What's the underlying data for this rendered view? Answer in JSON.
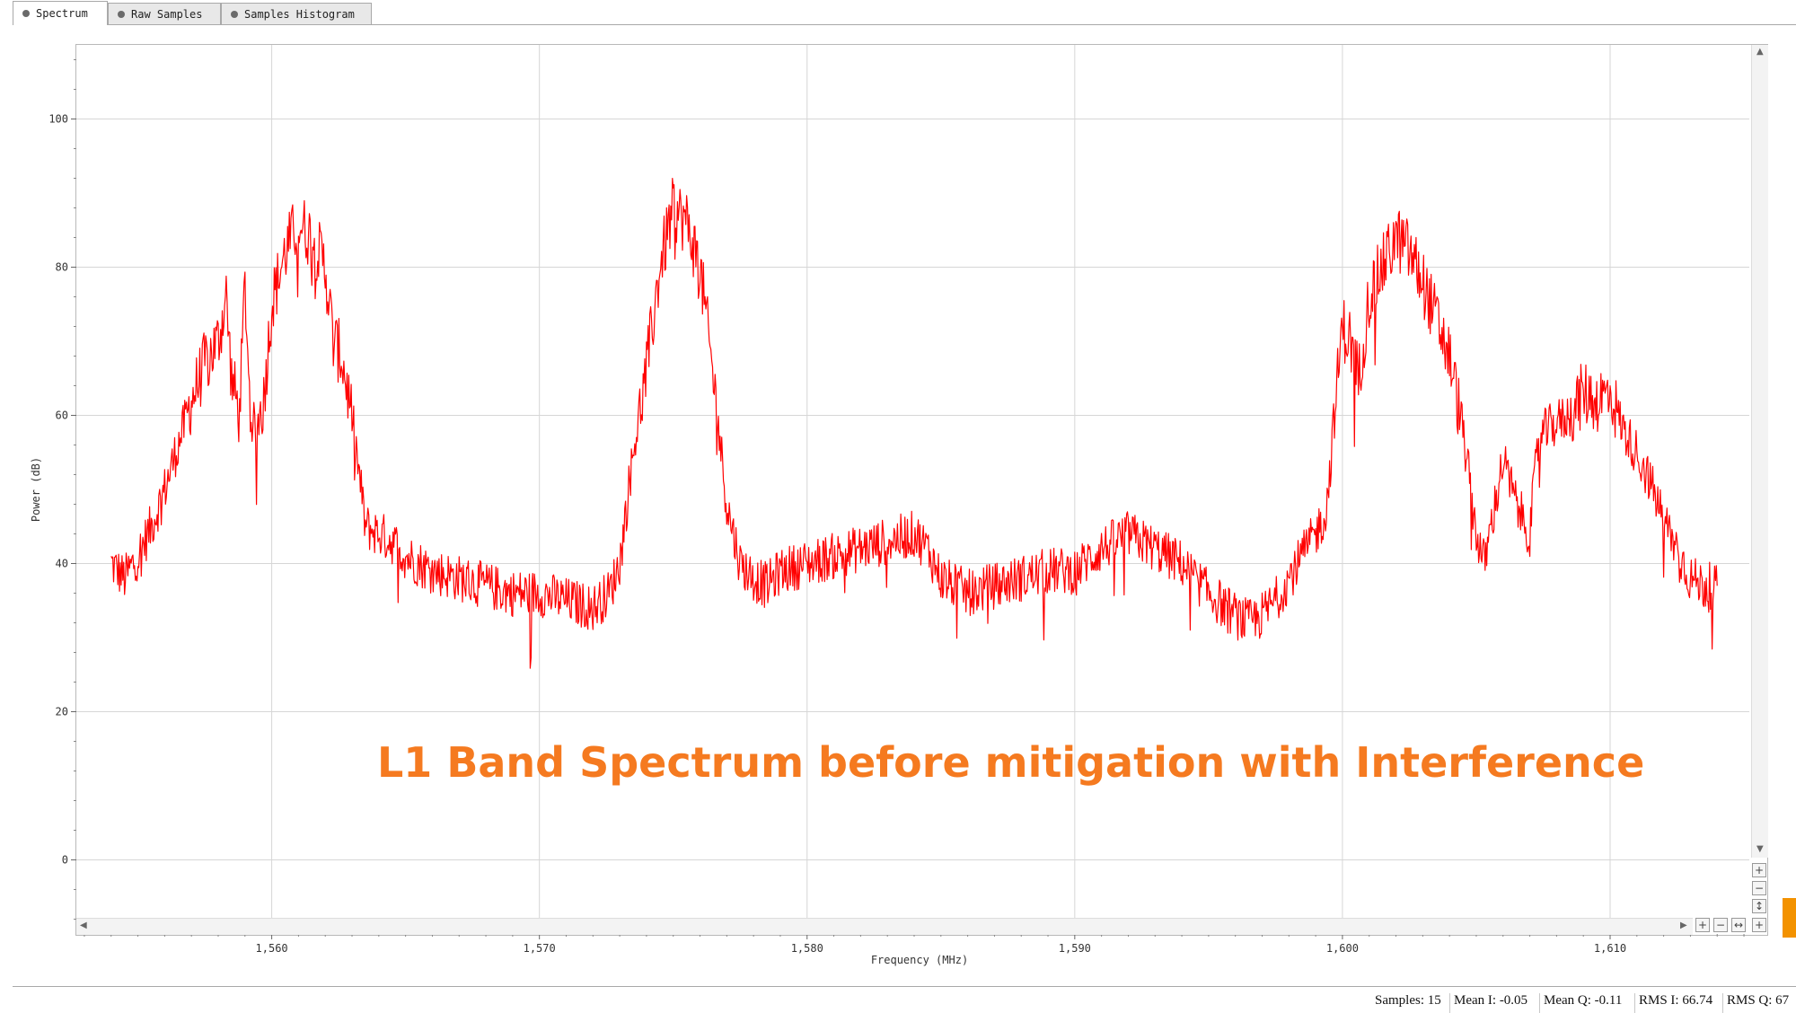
{
  "tabs": [
    {
      "label": "Spectrum",
      "active": true
    },
    {
      "label": "Raw Samples",
      "active": false
    },
    {
      "label": "Samples Histogram",
      "active": false
    }
  ],
  "annotation": "L1 Band Spectrum before mitigation with Interference",
  "status": {
    "samples": "Samples: 15",
    "mean_i": "Mean I: -0.05",
    "mean_q": "Mean Q: -0.11",
    "rms_i": "RMS I: 66.74",
    "rms_q": "RMS Q: 67"
  },
  "zoom_controls": [
    "+",
    "−",
    "+",
    "−",
    "+"
  ],
  "chart_data": {
    "type": "line",
    "xlabel": "Frequency (MHz)",
    "ylabel": "Power (dB)",
    "xlim": [
      1552.7,
      1615.2
    ],
    "ylim": [
      -10,
      110
    ],
    "xticks": [
      1560,
      1570,
      1580,
      1590,
      1600,
      1610
    ],
    "xtick_labels": [
      "1,560",
      "1,570",
      "1,580",
      "1,590",
      "1,600",
      "1,610"
    ],
    "yticks": [
      0,
      20,
      40,
      60,
      80,
      100
    ],
    "ytick_labels": [
      "0",
      "20",
      "40",
      "60",
      "80",
      "100"
    ],
    "grid": true,
    "line_color": "#ff0000",
    "series": [
      {
        "x": [
          1554.0,
          1554.5,
          1555.0,
          1555.5,
          1556.0,
          1556.5,
          1557.0,
          1557.5,
          1558.0,
          1558.3,
          1558.5,
          1558.8,
          1559.0,
          1559.2,
          1559.4,
          1559.7,
          1560.0,
          1560.5,
          1561.0,
          1561.5,
          1562.0,
          1562.3,
          1562.6,
          1563.0,
          1563.5,
          1564.0,
          1564.5,
          1565.0,
          1565.5,
          1566.0,
          1567.0,
          1568.0,
          1569.0,
          1570.0,
          1571.0,
          1572.0,
          1572.6,
          1573.0,
          1573.5,
          1574.0,
          1574.5,
          1575.0,
          1575.5,
          1576.0,
          1576.5,
          1577.0,
          1577.5,
          1578.0,
          1578.5,
          1579.0,
          1580.0,
          1581.0,
          1582.0,
          1583.0,
          1584.0,
          1584.5,
          1585.0,
          1586.0,
          1587.0,
          1588.0,
          1589.0,
          1590.0,
          1591.0,
          1592.0,
          1593.0,
          1594.0,
          1595.0,
          1596.0,
          1596.5,
          1597.0,
          1597.5,
          1598.0,
          1598.5,
          1599.0,
          1599.4,
          1599.7,
          1600.0,
          1600.3,
          1600.6,
          1601.0,
          1601.5,
          1602.0,
          1602.5,
          1603.0,
          1603.5,
          1604.0,
          1604.5,
          1605.0,
          1605.3,
          1605.6,
          1606.0,
          1606.5,
          1607.0,
          1607.3,
          1607.6,
          1608.0,
          1608.5,
          1609.0,
          1609.5,
          1610.0,
          1610.5,
          1611.0,
          1611.5,
          1612.0,
          1612.5,
          1613.0,
          1613.5,
          1614.0
        ],
        "y": [
          40,
          38,
          41,
          45,
          50,
          56,
          62,
          67,
          70,
          76,
          65,
          60,
          78,
          60,
          58,
          62,
          75,
          82,
          86,
          84,
          80,
          70,
          68,
          60,
          45,
          44,
          43,
          41,
          40,
          39,
          38,
          37,
          36,
          36,
          35,
          34,
          36,
          40,
          55,
          66,
          80,
          88,
          86,
          80,
          65,
          48,
          40,
          38,
          37,
          39,
          40,
          41,
          42,
          43,
          44,
          42,
          38,
          36,
          37,
          38,
          39,
          39,
          42,
          44,
          42,
          40,
          36,
          33,
          32,
          33,
          35,
          38,
          41,
          44,
          47,
          60,
          72,
          70,
          65,
          76,
          80,
          84,
          82,
          78,
          73,
          68,
          58,
          44,
          40,
          46,
          54,
          48,
          44,
          56,
          58,
          59,
          60,
          63,
          62,
          63,
          58,
          55,
          51,
          46,
          42,
          38,
          37,
          37
        ]
      }
    ]
  }
}
